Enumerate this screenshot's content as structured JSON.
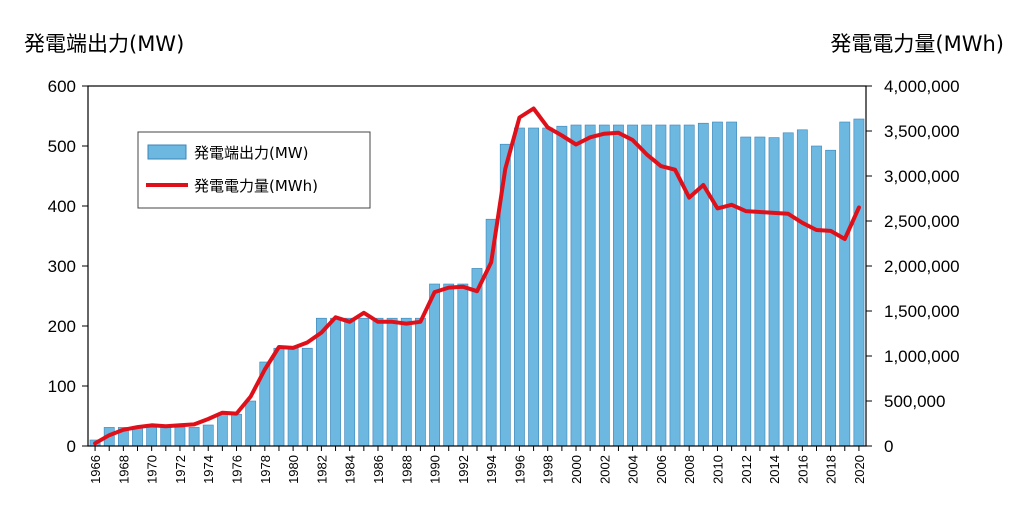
{
  "chart_data": {
    "type": "bar",
    "left_axis_title": "発電端出力(MW)",
    "right_axis_title": "発電電力量(MWh)",
    "left_ylim": [
      0,
      600
    ],
    "left_ticks": [
      "0",
      "100",
      "200",
      "300",
      "400",
      "500",
      "600"
    ],
    "right_ylim": [
      0,
      4000000
    ],
    "right_ticks": [
      "0",
      "500,000",
      "1,000,000",
      "1,500,000",
      "2,000,000",
      "2,500,000",
      "3,000,000",
      "3,500,000",
      "4,000,000"
    ],
    "x_tick_labels": [
      "1966",
      "1968",
      "1970",
      "1972",
      "1974",
      "1976",
      "1978",
      "1980",
      "1982",
      "1984",
      "1986",
      "1988",
      "1990",
      "1992",
      "1994",
      "1996",
      "1998",
      "2000",
      "2002",
      "2004",
      "2006",
      "2008",
      "2010",
      "2012",
      "2014",
      "2016",
      "2018",
      "2020"
    ],
    "x": [
      1966,
      1967,
      1968,
      1969,
      1970,
      1971,
      1972,
      1973,
      1974,
      1975,
      1976,
      1977,
      1978,
      1979,
      1980,
      1981,
      1982,
      1983,
      1984,
      1985,
      1986,
      1987,
      1988,
      1989,
      1990,
      1991,
      1992,
      1993,
      1994,
      1995,
      1996,
      1997,
      1998,
      1999,
      2000,
      2001,
      2002,
      2003,
      2004,
      2005,
      2006,
      2007,
      2008,
      2009,
      2010,
      2011,
      2012,
      2013,
      2014,
      2015,
      2016,
      2017,
      2018,
      2019,
      2020
    ],
    "grid": false,
    "legend_position": "top-left",
    "series": [
      {
        "name": "発電端出力(MW)",
        "kind": "bar",
        "axis": "left",
        "color": "#6cb8e0",
        "values": [
          10,
          31,
          31,
          31,
          31,
          31,
          31,
          31,
          35,
          53,
          53,
          75,
          140,
          163,
          163,
          163,
          213,
          213,
          213,
          213,
          213,
          213,
          213,
          213,
          270,
          270,
          270,
          296,
          378,
          503,
          530,
          530,
          530,
          533,
          535,
          535,
          535,
          535,
          535,
          535,
          535,
          535,
          535,
          538,
          540,
          540,
          515,
          515,
          514,
          522,
          527,
          500,
          493,
          540,
          545
        ]
      },
      {
        "name": "発電電力量(MWh)",
        "kind": "line",
        "axis": "right",
        "color": "#e0101a",
        "values": [
          30000,
          120000,
          180000,
          210000,
          230000,
          220000,
          230000,
          240000,
          300000,
          370000,
          360000,
          550000,
          850000,
          1100000,
          1090000,
          1150000,
          1260000,
          1430000,
          1380000,
          1480000,
          1380000,
          1380000,
          1360000,
          1380000,
          1710000,
          1760000,
          1770000,
          1720000,
          2040000,
          3080000,
          3650000,
          3750000,
          3540000,
          3450000,
          3350000,
          3430000,
          3470000,
          3480000,
          3400000,
          3240000,
          3110000,
          3070000,
          2760000,
          2900000,
          2640000,
          2680000,
          2610000,
          2600000,
          2590000,
          2580000,
          2480000,
          2400000,
          2390000,
          2300000,
          2650000
        ]
      }
    ]
  }
}
